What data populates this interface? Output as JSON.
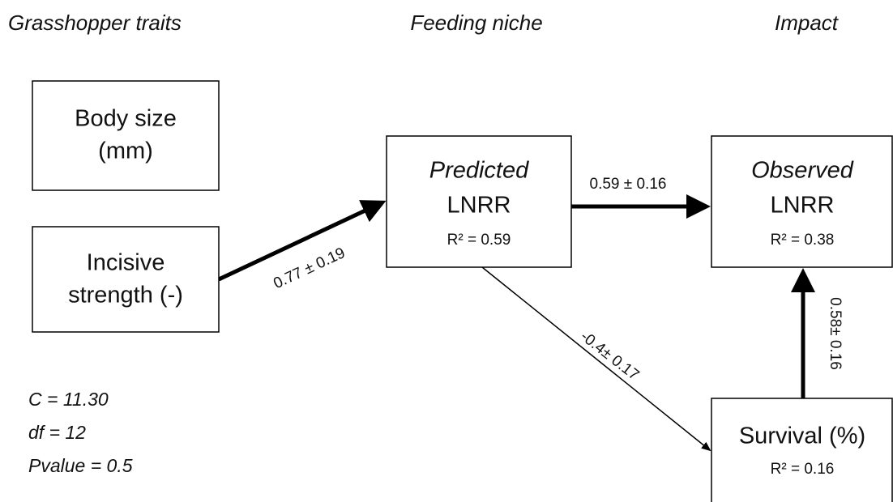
{
  "columns": [
    "Grasshopper traits",
    "Feeding niche",
    "Impact"
  ],
  "nodes": [
    {
      "lines": [
        "Body size",
        "(mm)"
      ]
    },
    {
      "lines": [
        "Incisive",
        "strength (-)"
      ]
    },
    {
      "lines": [
        "Predicted",
        "LNRR",
        "R² = 0.59"
      ]
    },
    {
      "lines": [
        "Observed",
        "LNRR",
        "R² = 0.38"
      ]
    },
    {
      "lines": [
        "Survival (%)",
        "R² = 0.16"
      ]
    }
  ],
  "edges": [
    {
      "label": "0.77 ± 0.19"
    },
    {
      "label": "0.59 ± 0.16"
    },
    {
      "label": "-0.4± 0.17"
    },
    {
      "label": "0.58± 0.16"
    }
  ],
  "stats": [
    "C = 11.30",
    "df = 12",
    "Pvalue = 0.5"
  ]
}
